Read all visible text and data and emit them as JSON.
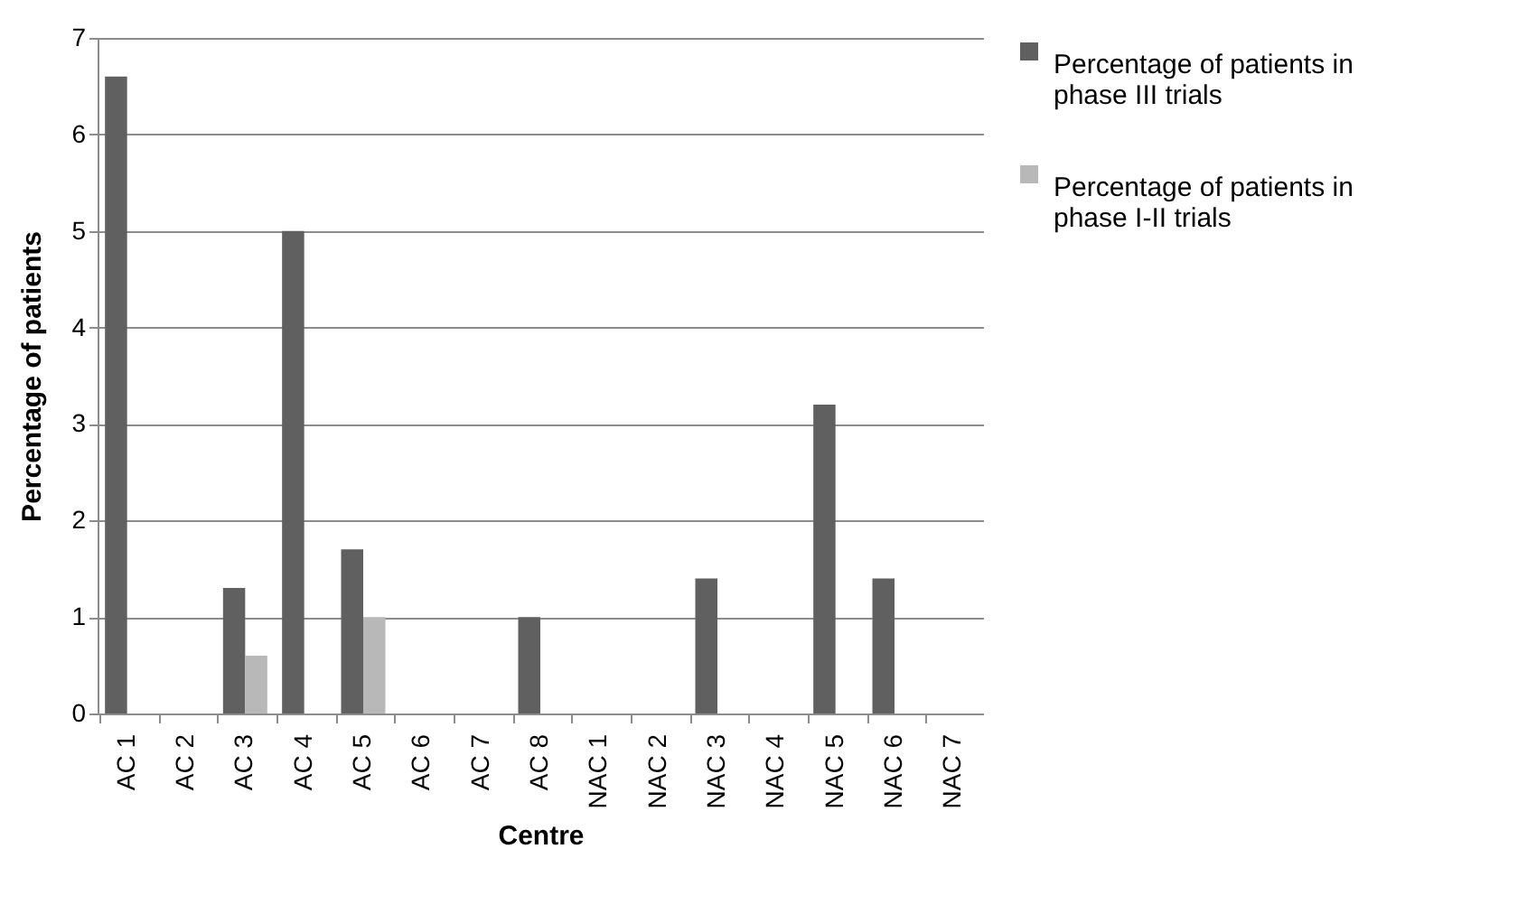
{
  "chart_data": {
    "type": "bar",
    "xlabel": "Centre",
    "ylabel": "Percentage of patients",
    "categories": [
      "AC 1",
      "AC 2",
      "AC 3",
      "AC 4",
      "AC 5",
      "AC 6",
      "AC 7",
      "AC 8",
      "NAC 1",
      "NAC 2",
      "NAC 3",
      "NAC 4",
      "NAC 5",
      "NAC 6",
      "NAC 7"
    ],
    "series": [
      {
        "name": "Percentage of patients in phase III trials",
        "color": "#606060",
        "values": [
          6.6,
          0,
          1.3,
          5.0,
          1.7,
          0,
          0,
          1.0,
          0,
          0,
          1.4,
          0,
          3.2,
          1.4,
          0
        ]
      },
      {
        "name": "Percentage of patients in phase I-II trials",
        "color": "#b8b8b8",
        "values": [
          0,
          0,
          0.6,
          0,
          1.0,
          0,
          0,
          0,
          0,
          0,
          0,
          0,
          0,
          0,
          0
        ]
      }
    ],
    "ylim": [
      0,
      7
    ],
    "yticks": [
      0,
      1,
      2,
      3,
      4,
      5,
      6,
      7
    ],
    "grid": "y",
    "legend": "right"
  }
}
